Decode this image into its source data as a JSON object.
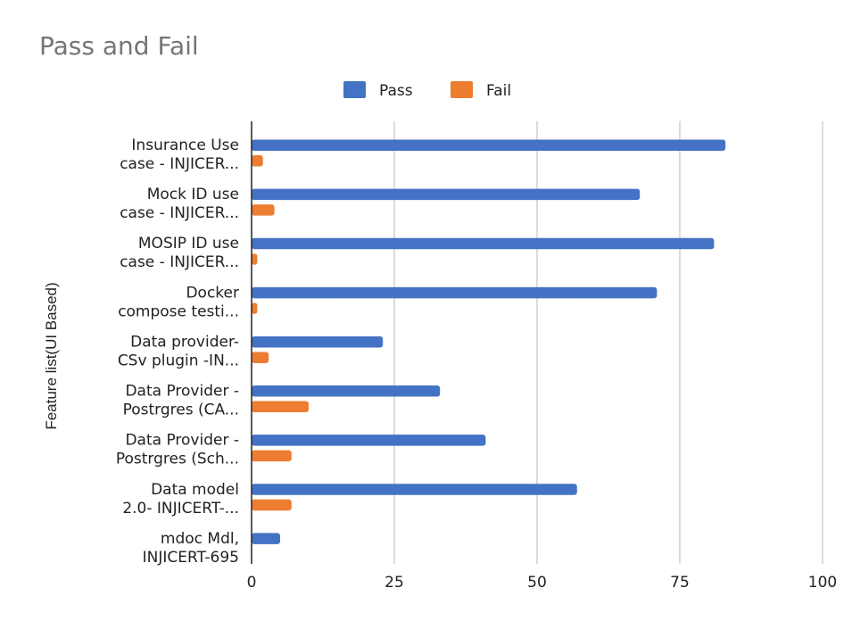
{
  "chart_data": {
    "type": "bar",
    "orientation": "horizontal",
    "title": "Pass and Fail",
    "ylabel": "Feature list(UI Based)",
    "xlabel": "",
    "xlim": [
      0,
      100
    ],
    "xticks": [
      0,
      25,
      50,
      75,
      100
    ],
    "grid": true,
    "legend_position": "top-center",
    "categories": [
      [
        "Insurance Use",
        "case - INJICER..."
      ],
      [
        "Mock ID use",
        "case - INJICER..."
      ],
      [
        "MOSIP ID use",
        "case - INJICER..."
      ],
      [
        "Docker",
        "compose testi..."
      ],
      [
        "Data provider-",
        "CSv plugin -IN..."
      ],
      [
        "Data Provider -",
        "Postrgres (CA..."
      ],
      [
        "Data Provider -",
        "Postrgres (Sch..."
      ],
      [
        "Data model",
        "2.0- INJICERT-..."
      ],
      [
        "mdoc Mdl,",
        "INJICERT-695"
      ]
    ],
    "series": [
      {
        "name": "Pass",
        "color": "#4472c4",
        "values": [
          83,
          68,
          81,
          71,
          23,
          33,
          41,
          57,
          5
        ]
      },
      {
        "name": "Fail",
        "color": "#ed7d31",
        "values": [
          2,
          4,
          1,
          1,
          3,
          10,
          7,
          7,
          0
        ]
      }
    ]
  }
}
